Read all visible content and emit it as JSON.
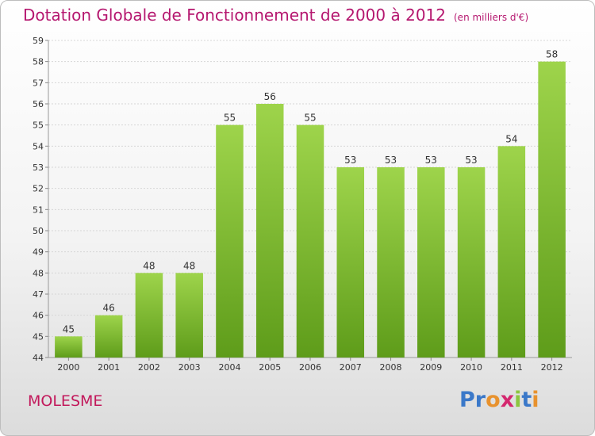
{
  "header": {
    "title": "Dotation Globale de Fonctionnement de 2000 à 2012",
    "subtitle": "(en milliers d'€)"
  },
  "footer": {
    "commune": "MOLESME",
    "logo": {
      "letters": [
        "P",
        "r",
        "o",
        "x",
        "i",
        "t",
        "i"
      ],
      "colors": [
        "#3a78c9",
        "#3a78c9",
        "#e8922e",
        "#d4286f",
        "#8cc63f",
        "#3a78c9",
        "#e8922e"
      ]
    }
  },
  "chart_data": {
    "type": "bar",
    "categories": [
      "2000",
      "2001",
      "2002",
      "2003",
      "2004",
      "2005",
      "2006",
      "2007",
      "2008",
      "2009",
      "2010",
      "2011",
      "2012"
    ],
    "values": [
      45,
      46,
      48,
      48,
      55,
      56,
      55,
      53,
      53,
      53,
      53,
      54,
      58
    ],
    "data_labels": [
      "45",
      "46",
      "48",
      "48",
      "55",
      "56",
      "55",
      "53",
      "53",
      "53",
      "53",
      "54",
      "58"
    ],
    "y_ticks": [
      "44",
      "45",
      "46",
      "47",
      "48",
      "49",
      "50",
      "51",
      "52",
      "53",
      "54",
      "55",
      "56",
      "57",
      "58",
      "59"
    ],
    "ylim": [
      44,
      59
    ],
    "grid": true,
    "bar_color": "#7fbf2e",
    "title": "Dotation Globale de Fonctionnement de 2000 à 2012",
    "subtitle": "(en milliers d'€)"
  }
}
